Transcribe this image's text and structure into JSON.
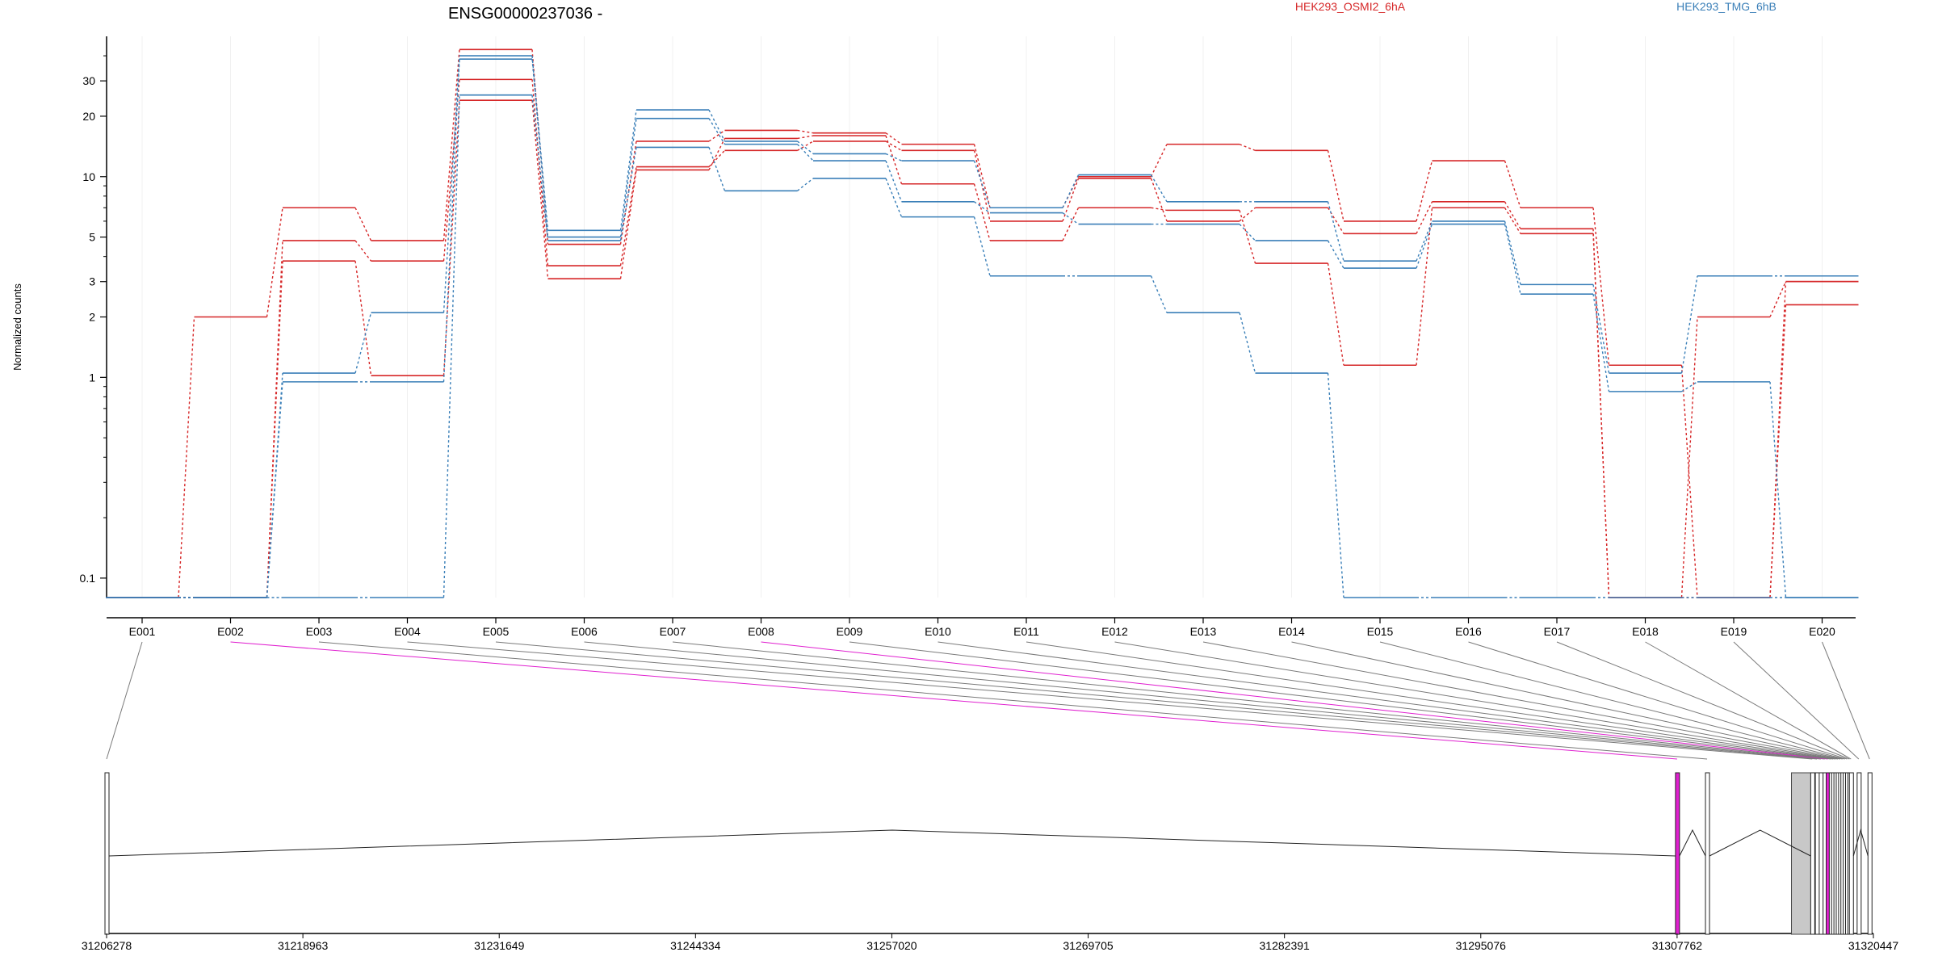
{
  "chart_data": {
    "type": "line",
    "title": "ENSG00000237036 -",
    "ylabel": "Normalized counts",
    "xlabel": "",
    "scale": "log",
    "grid": "vertical-light",
    "y_ticks": [
      0.1,
      1,
      2,
      3,
      5,
      10,
      20,
      30
    ],
    "y_tick_labels": [
      "0.1",
      "1",
      "2",
      "3",
      "5",
      "10",
      "20",
      "30"
    ],
    "ylim": [
      0.08,
      50
    ],
    "legend_placement": "top",
    "legend": [
      {
        "label": "HEK293_OSMI2_6hA",
        "color": "#d62728"
      },
      {
        "label": "HEK293_TMG_6hB",
        "color": "#3a7fb8"
      }
    ],
    "categories": [
      "E001",
      "E002",
      "E003",
      "E004",
      "E005",
      "E006",
      "E007",
      "E008",
      "E009",
      "E010",
      "E011",
      "E012",
      "E013",
      "E014",
      "E015",
      "E016",
      "E017",
      "E018",
      "E019",
      "E020"
    ],
    "series": [
      {
        "color": "#d62728",
        "values": [
          0.08,
          2,
          7,
          4.8,
          43,
          4.6,
          15,
          17,
          16.5,
          14.5,
          7,
          10,
          14.5,
          13.5,
          6,
          12,
          7,
          1.15,
          0.08,
          3
        ]
      },
      {
        "color": "#d62728",
        "values": [
          0.08,
          0.08,
          4.8,
          3.8,
          30.5,
          3.6,
          11.2,
          13.5,
          15,
          13.5,
          6,
          9.8,
          6,
          7,
          5.2,
          7.5,
          5.5,
          0.08,
          2,
          3
        ]
      },
      {
        "color": "#d62728",
        "values": [
          0.08,
          0.08,
          3.8,
          1.02,
          24,
          3.1,
          10.8,
          15.5,
          16,
          9.2,
          4.8,
          7,
          6.8,
          3.7,
          1.15,
          7,
          5.2,
          0.08,
          0.08,
          2.3
        ]
      },
      {
        "color": "#3a7fb8",
        "values": [
          0.08,
          0.08,
          1.05,
          2.1,
          40,
          5.4,
          21.5,
          15,
          13,
          12,
          7,
          10.2,
          7.5,
          7.5,
          3.8,
          6,
          2.9,
          1.05,
          3.2,
          3.2
        ]
      },
      {
        "color": "#3a7fb8",
        "values": [
          0.08,
          0.08,
          0.95,
          0.95,
          38.5,
          5,
          19.5,
          14.5,
          12,
          7.5,
          6.6,
          5.8,
          5.8,
          4.8,
          3.5,
          5.8,
          2.6,
          0.85,
          0.95,
          0.08
        ]
      },
      {
        "color": "#3a7fb8",
        "values": [
          0.08,
          0.08,
          0.08,
          0.08,
          25.5,
          4.8,
          14,
          8.5,
          9.8,
          6.3,
          3.2,
          3.2,
          2.1,
          1.05,
          0.08,
          0.08,
          0.08,
          0.08,
          0.08,
          0.08
        ]
      }
    ],
    "genomic_ticks": [
      "31206278",
      "31218963",
      "31231649",
      "31244334",
      "31257020",
      "31269705",
      "31282391",
      "31295076",
      "31307762",
      "31320447"
    ],
    "genomic_range": [
      31206278,
      31320447
    ],
    "exon_coords": [
      31206278,
      31307762,
      31309700,
      31316500,
      31316800,
      31317050,
      31317300,
      31317500,
      31317700,
      31317850,
      31318000,
      31318150,
      31318300,
      31318450,
      31318600,
      31318750,
      31318900,
      31319000,
      31319500,
      31320200
    ],
    "highlight_exons": [
      "E002",
      "E008"
    ],
    "highlight_color": "#e020d0"
  }
}
